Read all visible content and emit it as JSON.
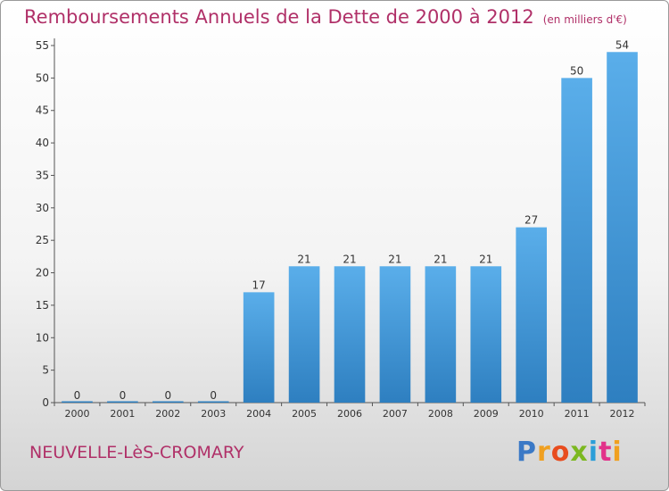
{
  "header": {
    "title": "Remboursements Annuels de la Dette de 2000 à 2012",
    "unit": "(en milliers d'€)"
  },
  "footer": {
    "town": "NEUVELLE-LèS-CROMARY",
    "logo_text": "Proxiti"
  },
  "colors": {
    "title": "#b03068",
    "bar_top": "#5aaeea",
    "bar_bottom": "#2e7fc0"
  },
  "chart_data": {
    "type": "bar",
    "title": "Remboursements Annuels de la Dette de 2000 à 2012",
    "subtitle": "(en milliers d'€)",
    "categories": [
      "2000",
      "2001",
      "2002",
      "2003",
      "2004",
      "2005",
      "2006",
      "2007",
      "2008",
      "2009",
      "2010",
      "2011",
      "2012"
    ],
    "values": [
      0,
      0,
      0,
      0,
      17,
      21,
      21,
      21,
      21,
      21,
      27,
      50,
      54
    ],
    "data_labels": [
      "0",
      "0",
      "0",
      "0",
      "17",
      "21",
      "21",
      "21",
      "21",
      "21",
      "27",
      "50",
      "54"
    ],
    "yticks": [
      "0",
      "5",
      "10",
      "15",
      "20",
      "25",
      "30",
      "35",
      "40",
      "45",
      "50",
      "55"
    ],
    "ylim": [
      0,
      55
    ],
    "grid": false,
    "legend": "none"
  }
}
